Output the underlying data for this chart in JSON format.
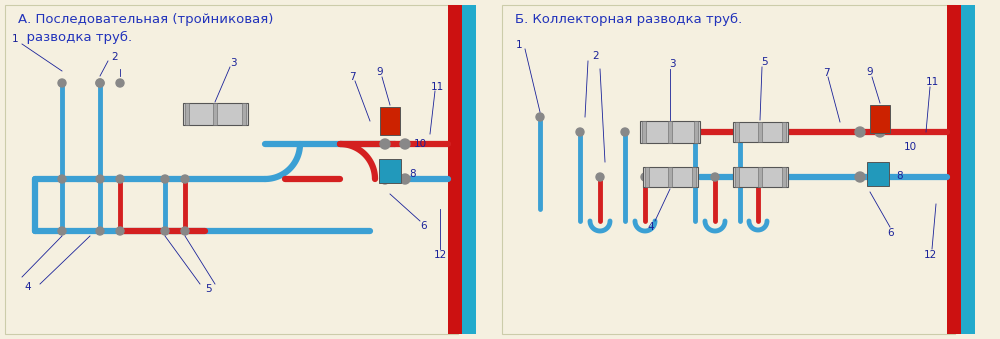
{
  "bg_color": "#f2edd8",
  "bg_panel": "#f5f0e0",
  "pipe_red": "#d42020",
  "pipe_blue": "#3ba0d4",
  "wall_red": "#cc1111",
  "wall_blue": "#22aacc",
  "title_color": "#2233bb",
  "label_color": "#1a2299",
  "title_A": "А. Последовательная (тройниковая)\n  разводка труб.",
  "title_B": "Б. Коллекторная разводка труб.",
  "lw_main": 4.5,
  "lw_branch": 3.5,
  "lfs": 7.5
}
